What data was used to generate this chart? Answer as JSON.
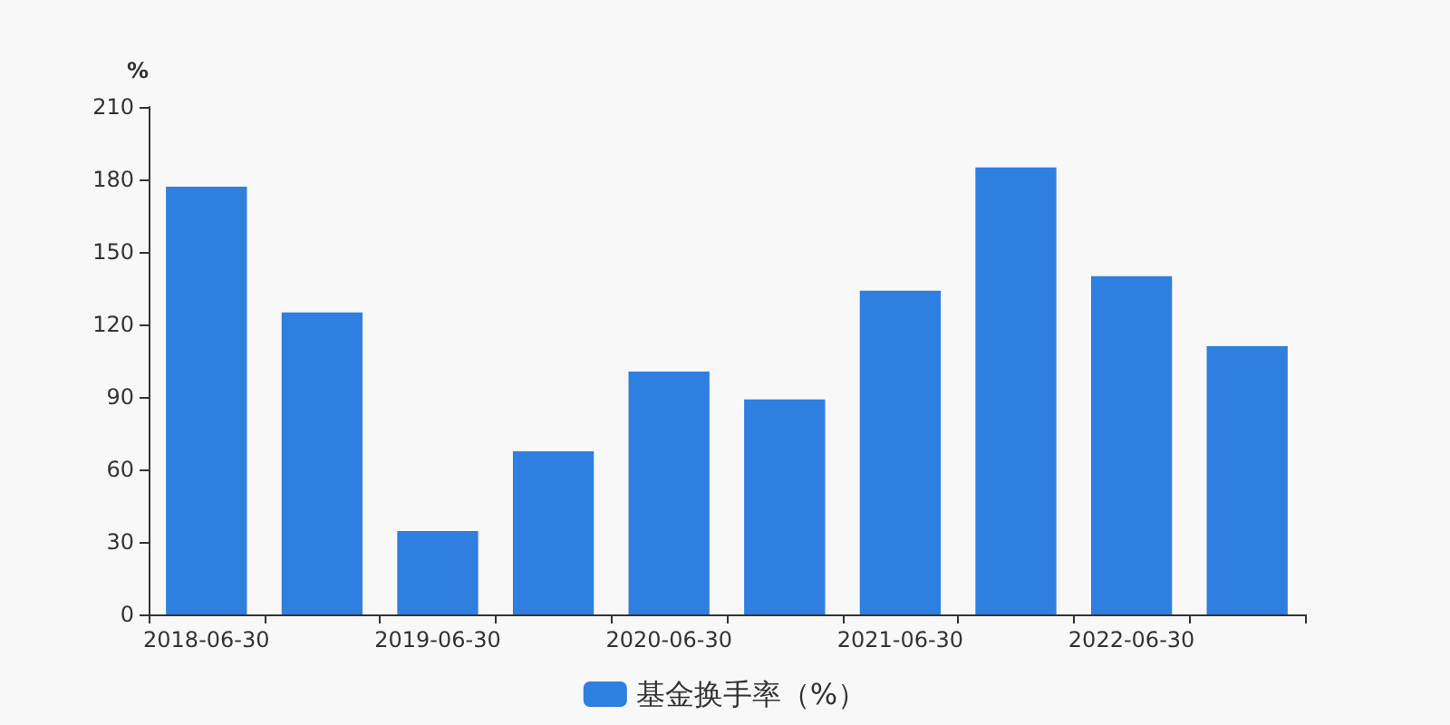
{
  "chart_data": {
    "type": "bar",
    "ylabel": "%",
    "categories": [
      "2018-06-30",
      null,
      "2019-06-30",
      null,
      "2020-06-30",
      null,
      "2021-06-30",
      null,
      "2022-06-30",
      null
    ],
    "series": [
      {
        "name": "基金换手率（%）",
        "color": "#2e7fe0",
        "values": [
          177,
          125,
          34.5,
          67.5,
          100.5,
          89,
          134,
          185,
          140,
          111
        ]
      }
    ],
    "ylim": [
      0,
      210
    ],
    "yticks": [
      0,
      30,
      60,
      90,
      120,
      150,
      180,
      210
    ],
    "grid": false,
    "legend": "bottom"
  }
}
